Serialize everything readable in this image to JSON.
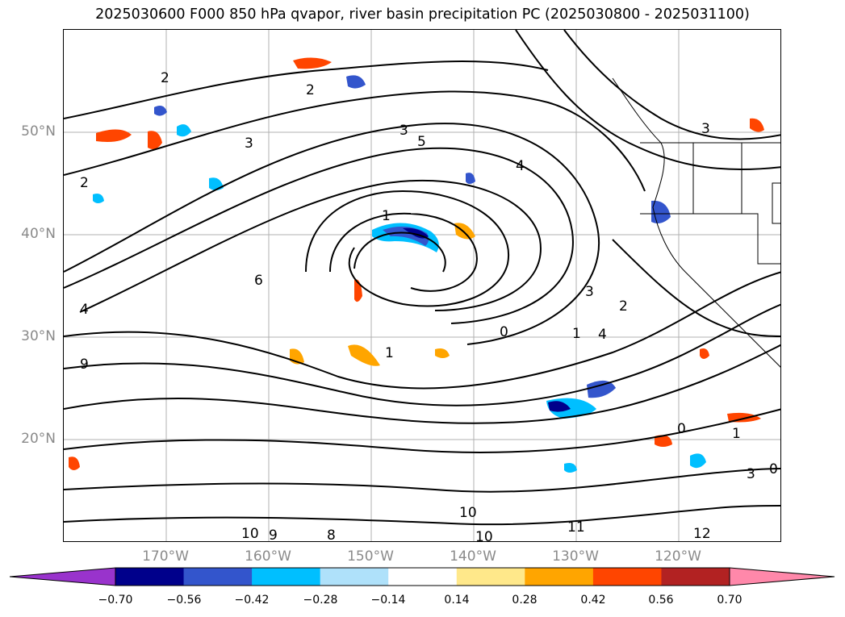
{
  "title": "2025030600 F000 850 hPa qvapor, river basin precipitation PC (2025030800 - 2025031100)",
  "latitude_labels": [
    "50°N",
    "40°N",
    "30°N",
    "20°N"
  ],
  "longitude_labels": [
    "170°W",
    "160°W",
    "150°W",
    "140°W",
    "130°W",
    "120°W"
  ],
  "contour_labels": [
    "2",
    "2",
    "2",
    "3",
    "3",
    "3",
    "5",
    "4",
    "1",
    "1",
    "1",
    "6",
    "4",
    "0",
    "9",
    "4",
    "3",
    "2",
    "1",
    "0",
    "11",
    "12",
    "10",
    "10",
    "10",
    "9",
    "8",
    "3",
    "0"
  ],
  "colorbar": {
    "colors": [
      "#9933cc",
      "#00008b",
      "#3355cc",
      "#00bfff",
      "#afe1fa",
      "#ffffff",
      "#ffe88a",
      "#ffa500",
      "#ff4500",
      "#b22222",
      "#ff88aa"
    ],
    "tick_labels": [
      "−0.70",
      "−0.56",
      "−0.42",
      "−0.28",
      "−0.14",
      "0.14",
      "0.28",
      "0.42",
      "0.56",
      "0.70"
    ],
    "extend": "both"
  }
}
